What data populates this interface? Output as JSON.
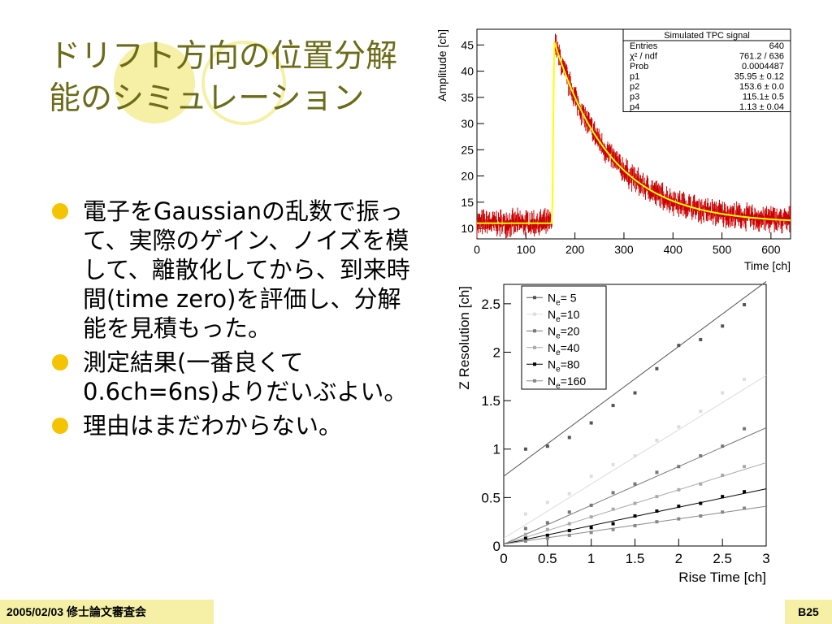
{
  "slide": {
    "title": "ドリフト方向の位置分解能のシミュレーション",
    "bullets": [
      "電子をGaussianの乱数で振って、実際のゲイン、ノイズを模して、離散化してから、到来時間(time zero)を評価し、分解能を見積もった。",
      "測定結果(一番良くて0.6ch=6ns)よりだいぶよい。",
      "理由はまだわからない。"
    ],
    "footer_left": "2005/02/03 修士論文審査会",
    "footer_right": "B25"
  },
  "colors": {
    "title": "#6b6b1a",
    "bullet": "#f5c400",
    "footer_bg": "#f5f0a6",
    "decor_circle": "#f5f0a6",
    "histogram": "#cc0000",
    "fit": "#ffff00"
  },
  "chart_data": [
    {
      "type": "line",
      "title": "",
      "xlabel": "Time [ch]",
      "ylabel": "Amplitude [ch]",
      "xlim": [
        0,
        640
      ],
      "ylim": [
        8,
        48
      ],
      "xticks": [
        0,
        100,
        200,
        300,
        400,
        500,
        600
      ],
      "yticks": [
        10,
        15,
        20,
        25,
        30,
        35,
        40,
        45
      ],
      "series": [
        {
          "name": "histogram",
          "color": "#cc0000"
        },
        {
          "name": "fit",
          "color": "#ffff00"
        }
      ],
      "fit_params": {
        "p1": 35.95,
        "p2": 153.6,
        "p3": 115.1,
        "p4": 1.13,
        "baseline": 11
      },
      "stats_box": {
        "title": "Simulated TPC signal",
        "rows": [
          {
            "label": "Entries",
            "value": "640"
          },
          {
            "label": "χ² / ndf",
            "value": "761.2 / 636"
          },
          {
            "label": "Prob",
            "value": "0.0004487"
          },
          {
            "label": "p1",
            "value": "35.95 ± 0.12"
          },
          {
            "label": "p2",
            "value": "153.6 ± 0.0"
          },
          {
            "label": "p3",
            "value": "115.1± 0.5"
          },
          {
            "label": "p4",
            "value": "1.13 ± 0.04"
          }
        ]
      }
    },
    {
      "type": "scatter",
      "title": "",
      "xlabel": "Rise Time [ch]",
      "ylabel": "Z Resolution [ch]",
      "xlim": [
        0,
        3
      ],
      "ylim": [
        0,
        2.7
      ],
      "xticks": [
        0,
        0.5,
        1,
        1.5,
        2,
        2.5,
        3
      ],
      "yticks": [
        0,
        0.5,
        1,
        1.5,
        2,
        2.5
      ],
      "x": [
        0.25,
        0.5,
        0.75,
        1.0,
        1.25,
        1.5,
        1.75,
        2.0,
        2.25,
        2.5,
        2.75
      ],
      "legend_position": "top-left",
      "series": [
        {
          "name": "Ne= 5",
          "label_main": "N",
          "label_sub": "e",
          "label_rest": "= 5",
          "color": "#555555",
          "values": [
            1.0,
            1.03,
            1.12,
            1.27,
            1.45,
            1.58,
            1.83,
            2.07,
            2.13,
            2.27,
            2.49
          ],
          "fit": [
            0.72,
            0.67
          ]
        },
        {
          "name": "Ne=10",
          "label_main": "N",
          "label_sub": "e",
          "label_rest": "=10",
          "color": "#dddddd",
          "values": [
            0.33,
            0.45,
            0.54,
            0.72,
            0.84,
            0.93,
            1.09,
            1.23,
            1.39,
            1.58,
            1.72
          ],
          "fit": [
            0.08,
            0.56
          ]
        },
        {
          "name": "Ne=20",
          "label_main": "N",
          "label_sub": "e",
          "label_rest": "=20",
          "color": "#777777",
          "values": [
            0.18,
            0.24,
            0.35,
            0.42,
            0.55,
            0.64,
            0.76,
            0.82,
            0.93,
            1.03,
            1.21
          ],
          "fit": [
            0.02,
            0.4
          ]
        },
        {
          "name": "Ne=40",
          "label_main": "N",
          "label_sub": "e",
          "label_rest": "=40",
          "color": "#aaaaaa",
          "values": [
            0.12,
            0.17,
            0.23,
            0.3,
            0.38,
            0.44,
            0.51,
            0.58,
            0.64,
            0.73,
            0.82
          ],
          "fit": [
            0.02,
            0.28
          ]
        },
        {
          "name": "Ne=80",
          "label_main": "N",
          "label_sub": "e",
          "label_rest": "=80",
          "color": "#000000",
          "values": [
            0.08,
            0.11,
            0.16,
            0.19,
            0.23,
            0.31,
            0.36,
            0.41,
            0.44,
            0.51,
            0.56
          ],
          "fit": [
            0.02,
            0.19
          ]
        },
        {
          "name": "Ne=160",
          "label_main": "N",
          "label_sub": "e",
          "label_rest": "=160",
          "color": "#888888",
          "values": [
            0.05,
            0.08,
            0.11,
            0.14,
            0.17,
            0.21,
            0.25,
            0.28,
            0.31,
            0.35,
            0.39
          ],
          "fit": [
            0.02,
            0.13
          ]
        }
      ]
    }
  ]
}
